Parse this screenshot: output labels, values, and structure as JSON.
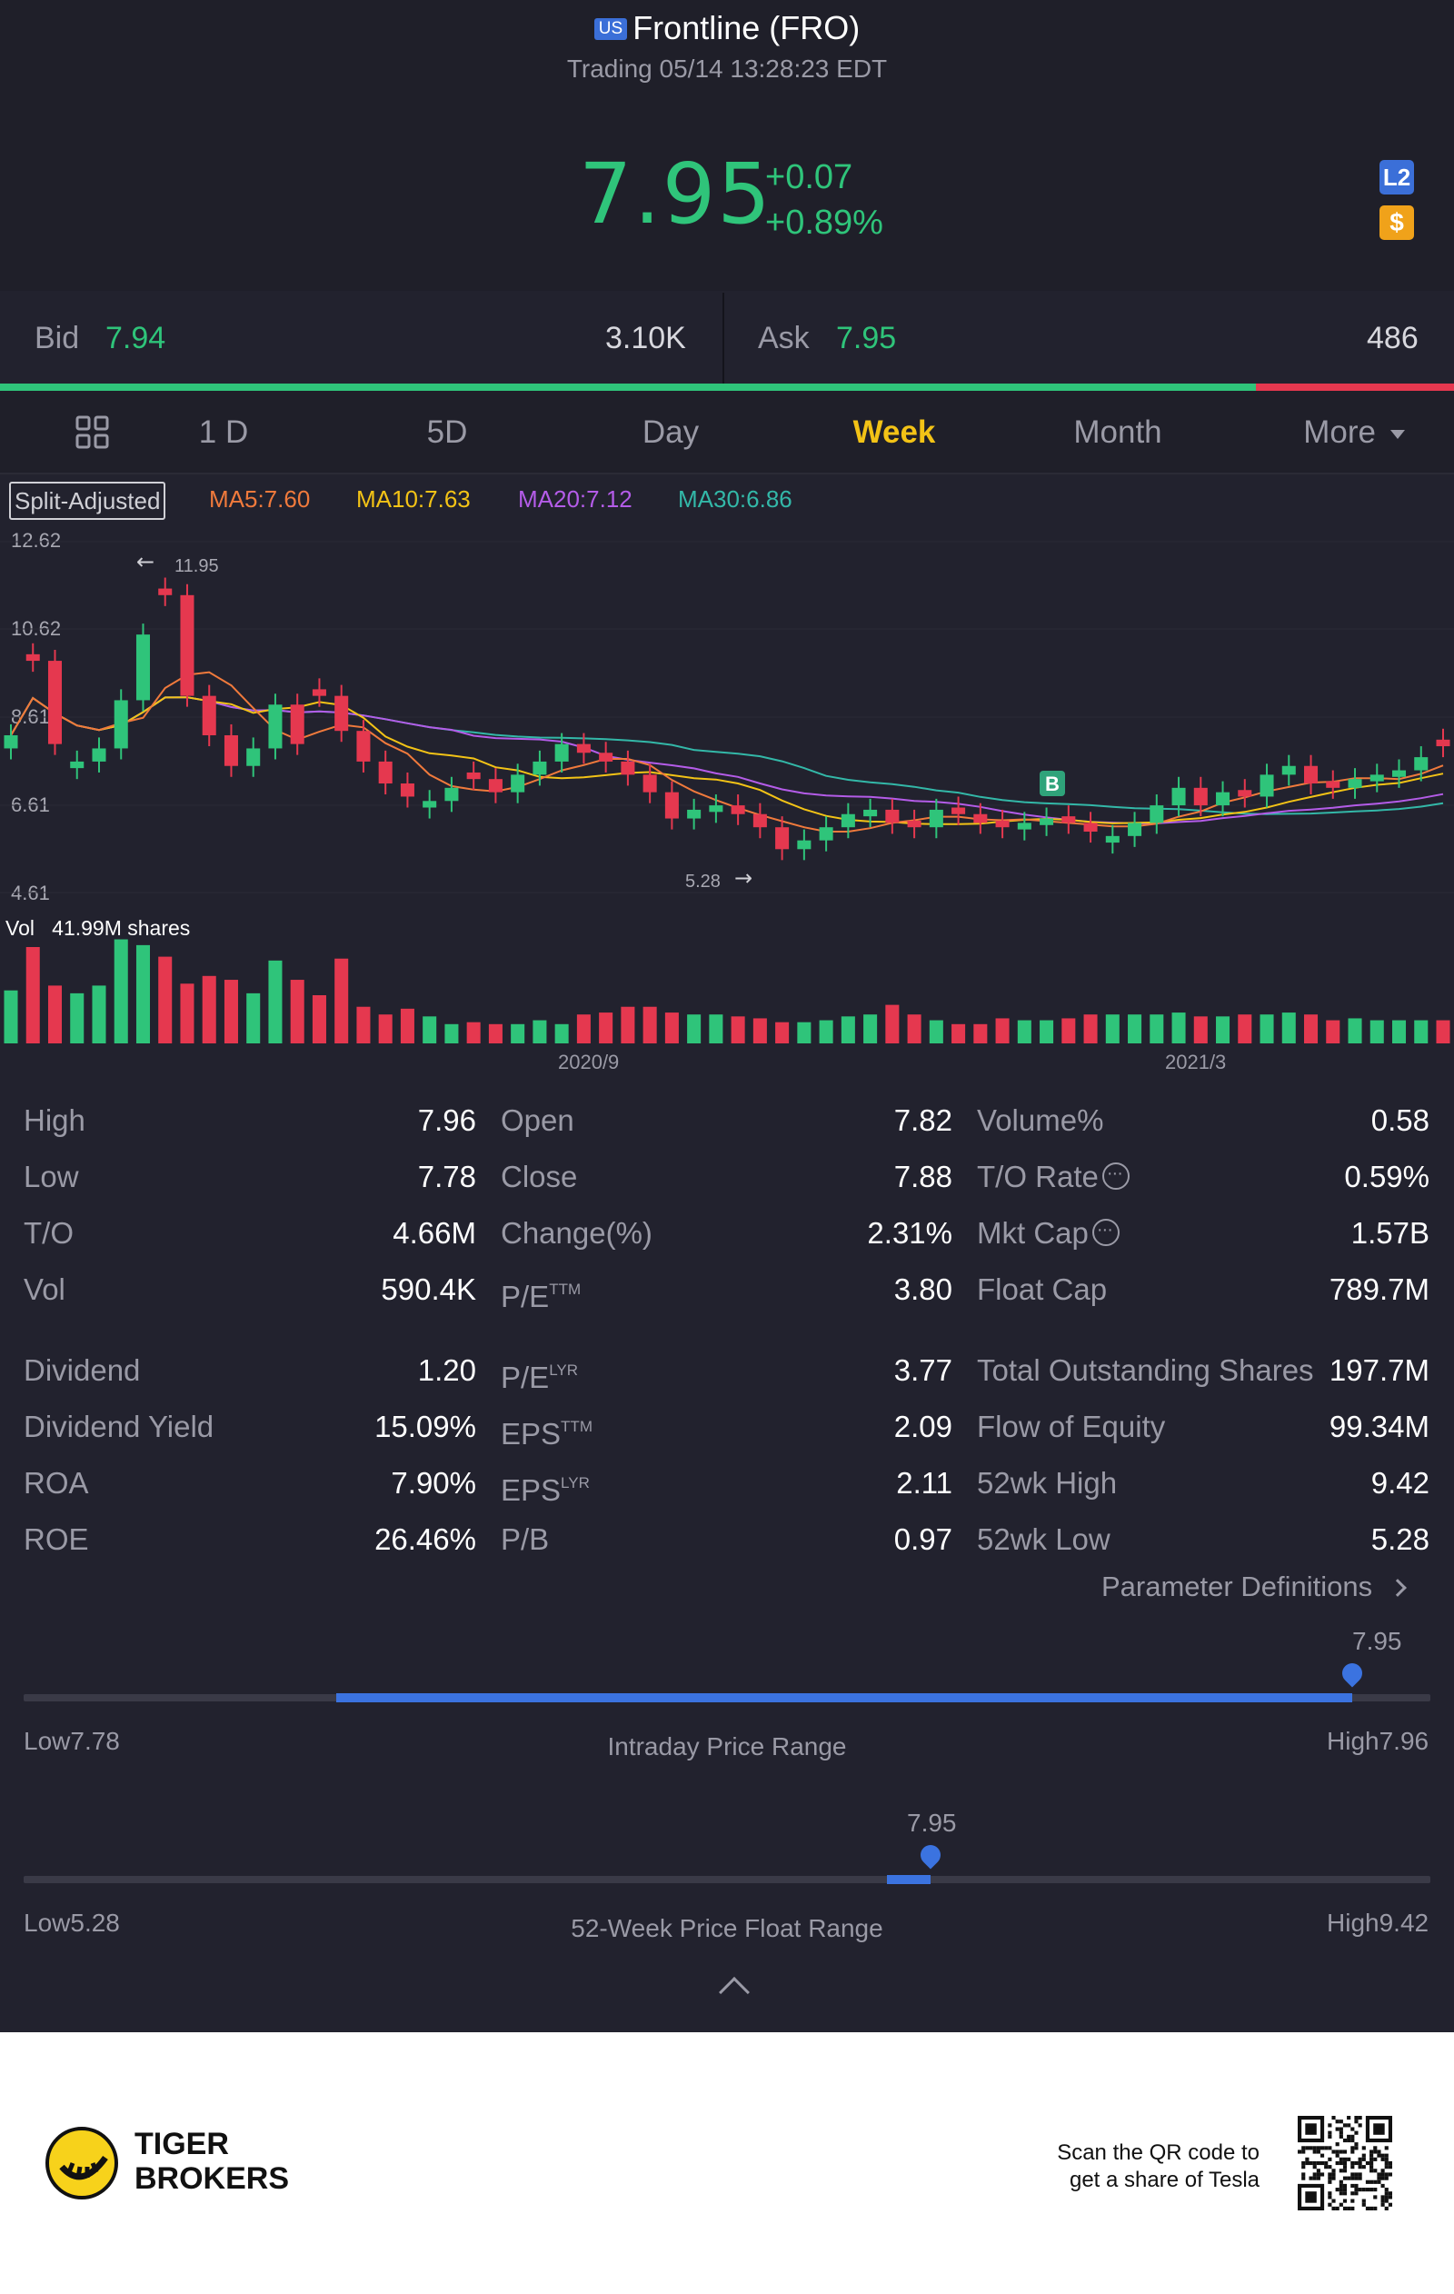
{
  "header": {
    "market_badge": "US",
    "title": "Frontline (FRO)",
    "status": "Trading 05/14 13:28:23 EDT",
    "price": "7.95",
    "change": "+0.07",
    "change_pct": "+0.89%",
    "level2_badge": "L2",
    "dollar_badge": "$",
    "accent_color": "#2fc47a"
  },
  "bid_ask": {
    "bid_label": "Bid",
    "bid_price": "7.94",
    "bid_size": "3.10K",
    "ask_label": "Ask",
    "ask_price": "7.95",
    "ask_size": "486",
    "bid_ratio": 0.864
  },
  "tabs": {
    "grid_icon": "grid-icon",
    "items": [
      "1 D",
      "5D",
      "Day",
      "Week",
      "Month"
    ],
    "more": "More",
    "active": "Week"
  },
  "chart": {
    "split_label": "Split-Adjusted",
    "ma5": "MA5:7.60",
    "ma10": "MA10:7.63",
    "ma20": "MA20:7.12",
    "ma30": "MA30:6.86",
    "y_ticks": [
      "12.62",
      "10.62",
      "8.61",
      "6.61",
      "4.61"
    ],
    "high_marker": "11.95",
    "low_marker": "5.28",
    "buy_marker": "B",
    "vol_label": "Vol",
    "vol_value": "41.99M shares",
    "x_ticks": [
      "2020/9",
      "2021/3"
    ]
  },
  "chart_data": {
    "type": "candlestick",
    "y_range": [
      4.61,
      12.62
    ],
    "candles_close": [
      8.2,
      9.9,
      8.0,
      7.6,
      7.9,
      9.0,
      10.5,
      11.4,
      9.1,
      8.2,
      7.5,
      7.9,
      8.9,
      8.0,
      9.1,
      8.3,
      7.6,
      7.1,
      6.8,
      6.7,
      7.0,
      7.2,
      6.9,
      7.3,
      7.6,
      8.0,
      7.8,
      7.6,
      7.3,
      6.9,
      6.3,
      6.5,
      6.6,
      6.4,
      6.1,
      5.6,
      5.8,
      6.1,
      6.4,
      6.5,
      6.2,
      6.1,
      6.5,
      6.4,
      6.2,
      6.1,
      6.2,
      6.3,
      6.2,
      6.0,
      5.9,
      6.2,
      6.6,
      7.0,
      6.6,
      6.9,
      6.8,
      7.3,
      7.5,
      7.1,
      7.0,
      7.2,
      7.3,
      7.4,
      7.7,
      7.95
    ],
    "up": [
      true,
      false,
      false,
      true,
      true,
      true,
      true,
      false,
      false,
      false,
      false,
      true,
      true,
      false,
      false,
      false,
      false,
      false,
      false,
      true,
      true,
      false,
      false,
      true,
      true,
      true,
      false,
      false,
      false,
      false,
      false,
      true,
      true,
      false,
      false,
      false,
      true,
      true,
      true,
      true,
      false,
      false,
      true,
      false,
      false,
      false,
      true,
      true,
      false,
      false,
      true,
      true,
      true,
      true,
      false,
      true,
      false,
      true,
      true,
      false,
      false,
      true,
      true,
      true,
      true,
      false
    ],
    "volumes": [
      0.55,
      1.0,
      0.6,
      0.52,
      0.6,
      1.08,
      1.02,
      0.9,
      0.62,
      0.7,
      0.66,
      0.52,
      0.86,
      0.66,
      0.5,
      0.88,
      0.38,
      0.3,
      0.36,
      0.28,
      0.2,
      0.22,
      0.2,
      0.2,
      0.24,
      0.2,
      0.3,
      0.32,
      0.38,
      0.38,
      0.32,
      0.3,
      0.3,
      0.28,
      0.26,
      0.22,
      0.22,
      0.24,
      0.28,
      0.3,
      0.4,
      0.3,
      0.24,
      0.2,
      0.2,
      0.26,
      0.24,
      0.24,
      0.26,
      0.3,
      0.3,
      0.3,
      0.3,
      0.32,
      0.28,
      0.28,
      0.3,
      0.3,
      0.32,
      0.3,
      0.24,
      0.26,
      0.24,
      0.24,
      0.24,
      0.24
    ]
  },
  "stats": {
    "col1": [
      {
        "label": "High",
        "value": "7.96"
      },
      {
        "label": "Low",
        "value": "7.78"
      },
      {
        "label": "T/O",
        "value": "4.66M"
      },
      {
        "label": "Vol",
        "value": "590.4K"
      },
      {
        "label": "Dividend",
        "value": "1.20"
      },
      {
        "label": "Dividend Yield",
        "value": "15.09%"
      },
      {
        "label": "ROA",
        "value": "7.90%"
      },
      {
        "label": "ROE",
        "value": "26.46%"
      }
    ],
    "col2": [
      {
        "label": "Open",
        "value": "7.82"
      },
      {
        "label": "Close",
        "value": "7.88"
      },
      {
        "label": "Change(%)",
        "value": "2.31%"
      },
      {
        "label": "P/E",
        "sup": "TTM",
        "value": "3.80"
      },
      {
        "label": "P/E",
        "sup": "LYR",
        "value": "3.77"
      },
      {
        "label": "EPS",
        "sup": "TTM",
        "value": "2.09"
      },
      {
        "label": "EPS",
        "sup": "LYR",
        "value": "2.11"
      },
      {
        "label": "P/B",
        "value": "0.97"
      }
    ],
    "col3": [
      {
        "label": "Volume%",
        "value": "0.58"
      },
      {
        "label": "T/O Rate",
        "value": "0.59%"
      },
      {
        "label": "Mkt Cap",
        "value": "1.57B"
      },
      {
        "label": "Float Cap",
        "value": "789.7M"
      },
      {
        "label": "Total Outstanding Shares",
        "value": "197.7M"
      },
      {
        "label": "Flow of Equity",
        "value": "99.34M"
      },
      {
        "label": "52wk High",
        "value": "9.42"
      },
      {
        "label": "52wk Low",
        "value": "5.28"
      }
    ],
    "param_def": "Parameter Definitions"
  },
  "ranges": {
    "intraday": {
      "title": "Intraday Price Range",
      "low": "Low7.78",
      "high": "High7.96",
      "current": "7.95",
      "low_v": 7.78,
      "high_v": 7.96,
      "open_v": 7.82
    },
    "week52": {
      "title": "52-Week Price Float Range",
      "low": "Low5.28",
      "high": "High9.42",
      "current": "7.95",
      "low_v": 5.28,
      "high_v": 9.42,
      "open_v": 7.82
    }
  },
  "footer": {
    "brand_line1": "TIGER",
    "brand_line2": "BROKERS",
    "scan_line1": "Scan the QR code to",
    "scan_line2": "get a share of Tesla"
  }
}
